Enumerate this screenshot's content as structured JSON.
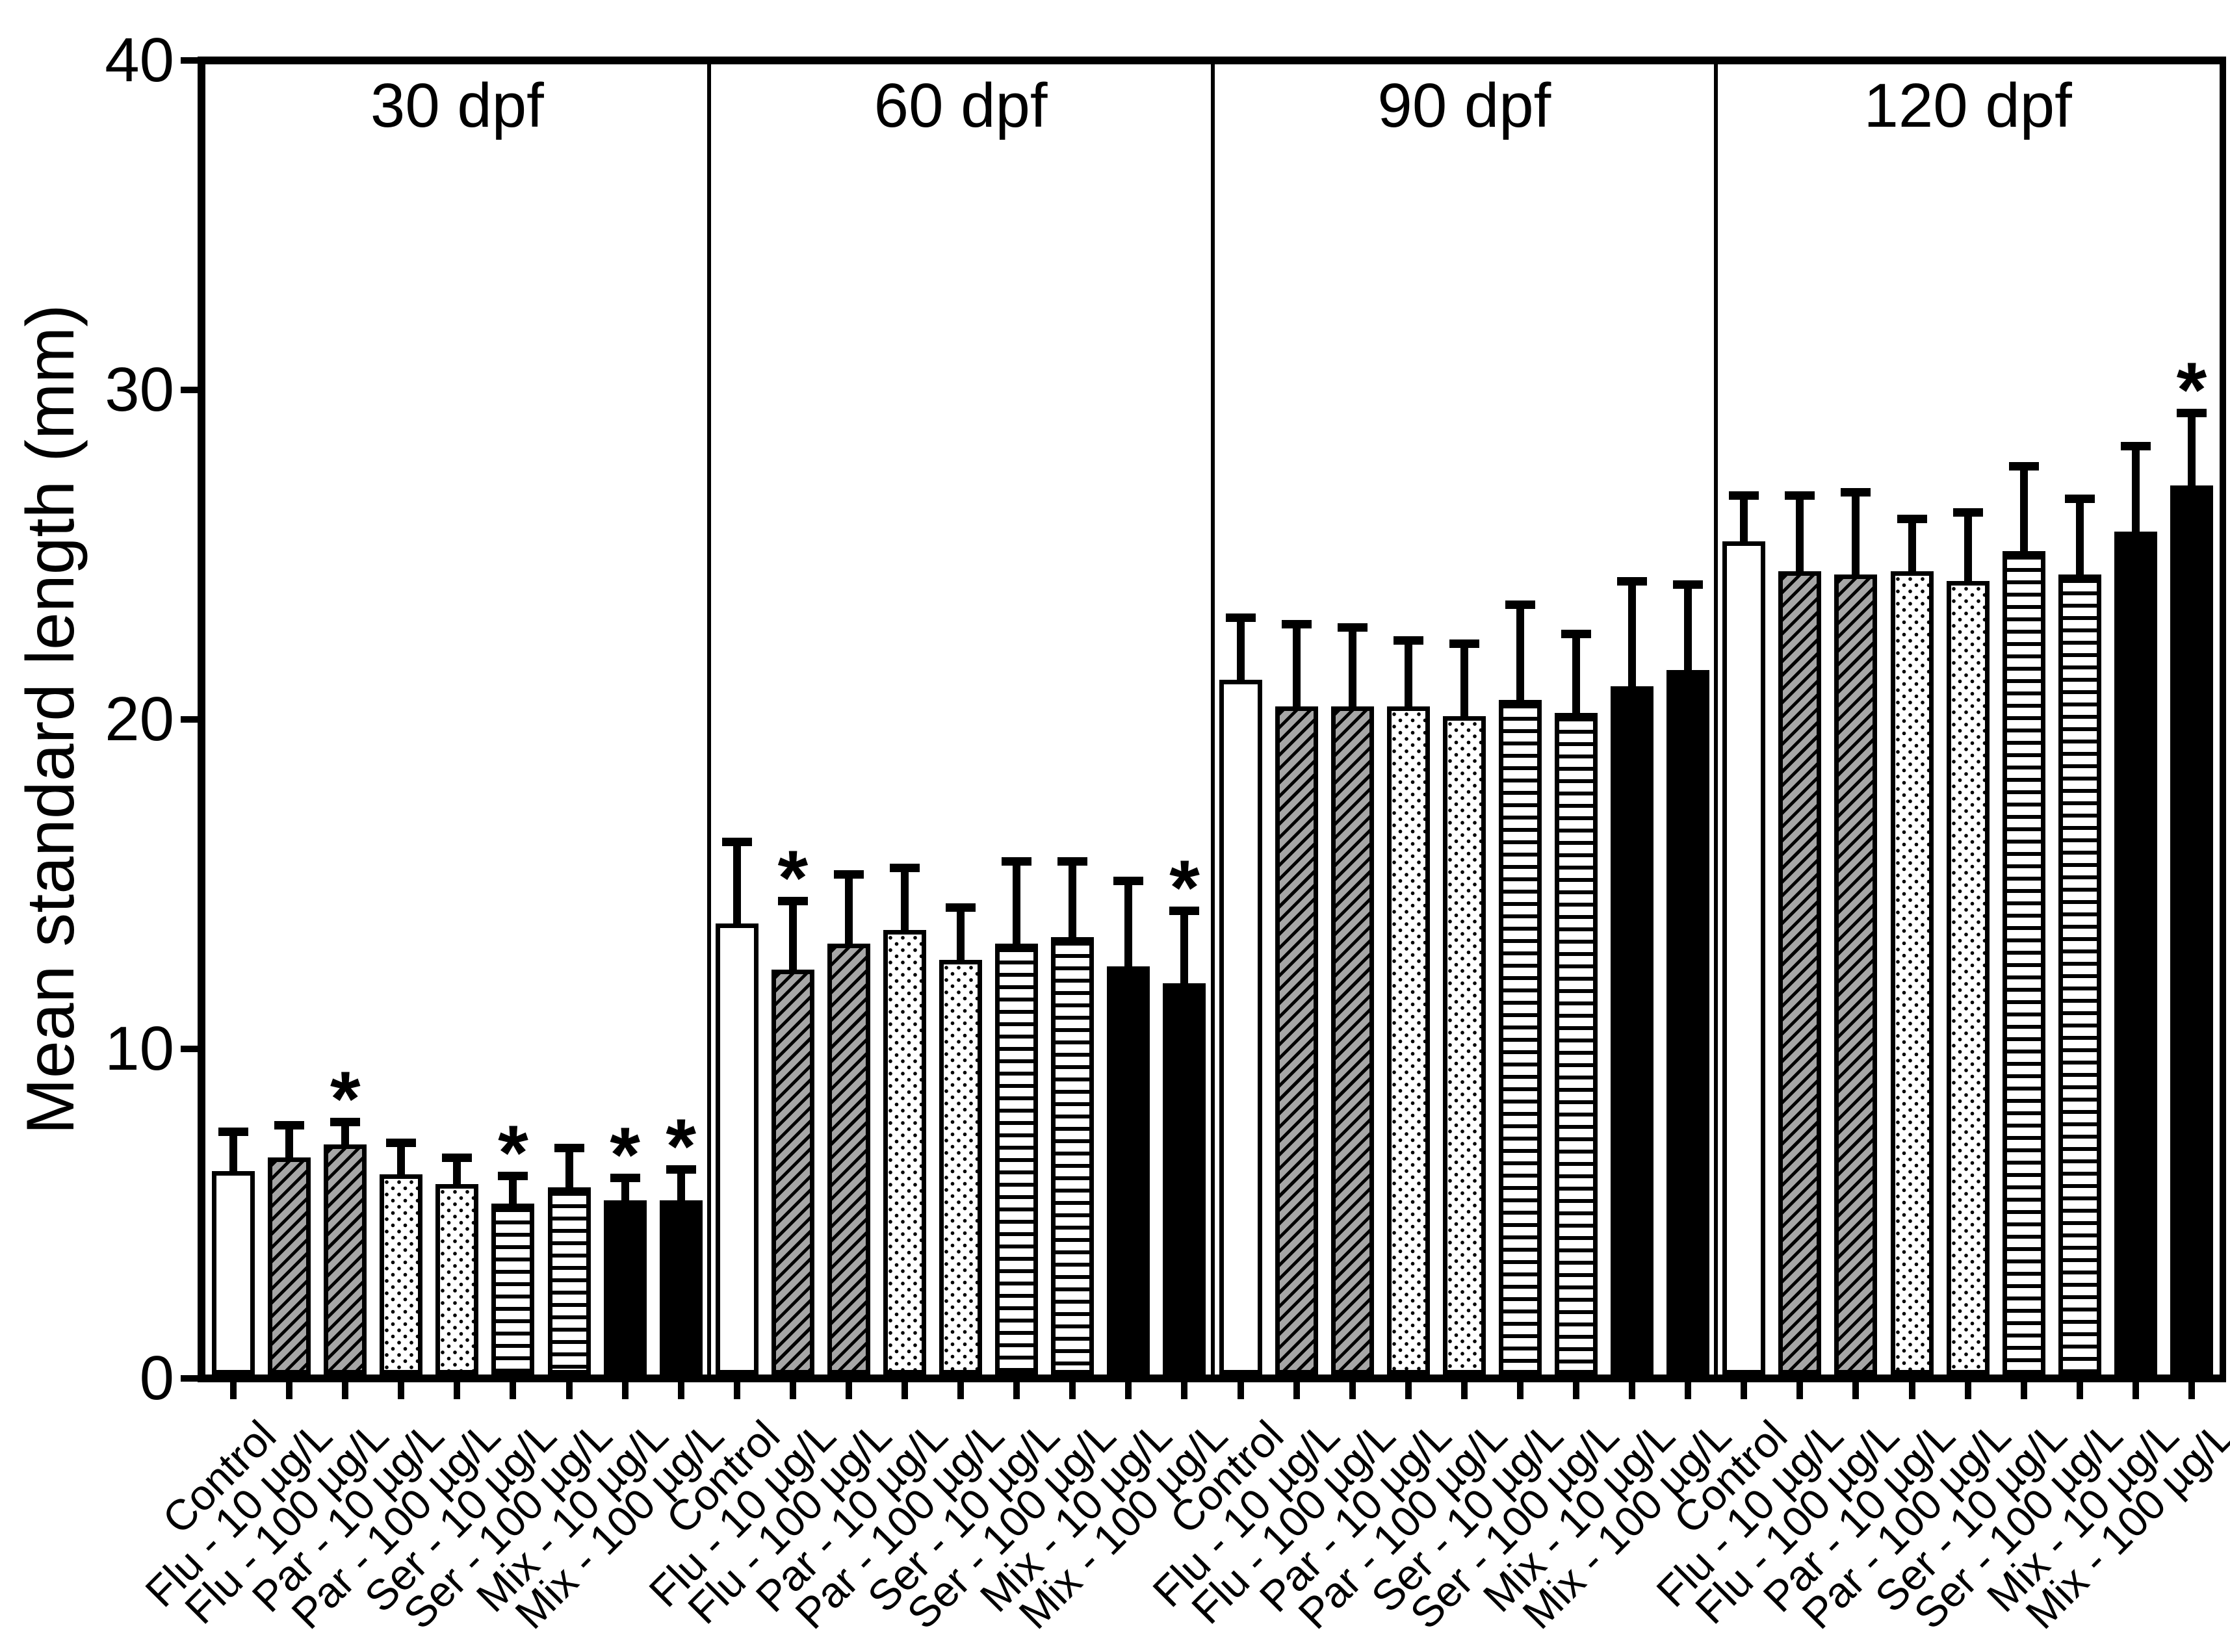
{
  "chart_data": {
    "type": "bar",
    "title": "",
    "xlabel": "",
    "ylabel": "Mean standard length (mm)",
    "ylim": [
      0,
      40
    ],
    "yticks": [
      0,
      10,
      20,
      30,
      40
    ],
    "grid": false,
    "legend_position": "none",
    "sig_marker": "*",
    "categories": [
      "Control",
      "Flu - 10 µg/L",
      "Flu - 100 µg/L",
      "Par - 10 µg/L",
      "Par - 100 µg/L",
      "Ser - 10 µg/L",
      "Ser - 100 µg/L",
      "Mix - 10 µg/L",
      "Mix - 100 µg/L"
    ],
    "bar_patterns": [
      "white-open",
      "gray-diagonal-hatch",
      "gray-diagonal-hatch",
      "white-dotted",
      "white-dotted",
      "white-horizontal-lines",
      "white-horizontal-lines",
      "solid-black",
      "solid-black"
    ],
    "groups": [
      {
        "label": "30 dpf",
        "values": [
          6.3,
          6.7,
          7.1,
          6.2,
          5.9,
          5.3,
          5.8,
          5.4,
          5.4
        ],
        "errors": [
          1.2,
          1.0,
          0.7,
          0.95,
          0.8,
          0.85,
          1.2,
          0.7,
          0.95
        ],
        "significant": [
          false,
          false,
          true,
          false,
          false,
          true,
          false,
          true,
          true
        ]
      },
      {
        "label": "60 dpf",
        "values": [
          13.8,
          12.4,
          13.2,
          13.6,
          12.7,
          13.2,
          13.4,
          12.5,
          12.0
        ],
        "errors": [
          2.5,
          2.1,
          2.1,
          1.9,
          1.6,
          2.5,
          2.3,
          2.6,
          2.2
        ],
        "significant": [
          false,
          true,
          false,
          false,
          false,
          false,
          false,
          false,
          true
        ]
      },
      {
        "label": "90 dpf",
        "values": [
          21.2,
          20.4,
          20.4,
          20.4,
          20.1,
          20.6,
          20.2,
          21.0,
          21.5
        ],
        "errors": [
          1.9,
          2.5,
          2.4,
          2.0,
          2.2,
          2.9,
          2.4,
          3.2,
          2.6
        ],
        "significant": [
          false,
          false,
          false,
          false,
          false,
          false,
          false,
          false,
          false
        ]
      },
      {
        "label": "120 dpf",
        "values": [
          25.4,
          24.5,
          24.4,
          24.5,
          24.2,
          25.1,
          24.4,
          25.7,
          27.1
        ],
        "errors": [
          1.4,
          2.3,
          2.5,
          1.6,
          2.1,
          2.6,
          2.3,
          2.6,
          2.2
        ],
        "significant": [
          false,
          false,
          false,
          false,
          false,
          false,
          false,
          false,
          true
        ]
      }
    ],
    "error_bar_style": "upper SD whisker with cap",
    "colors": {
      "bar_outline": "#000000",
      "hatch_gray": "#a6a6a6",
      "background": "#ffffff",
      "text": "#000000"
    }
  }
}
